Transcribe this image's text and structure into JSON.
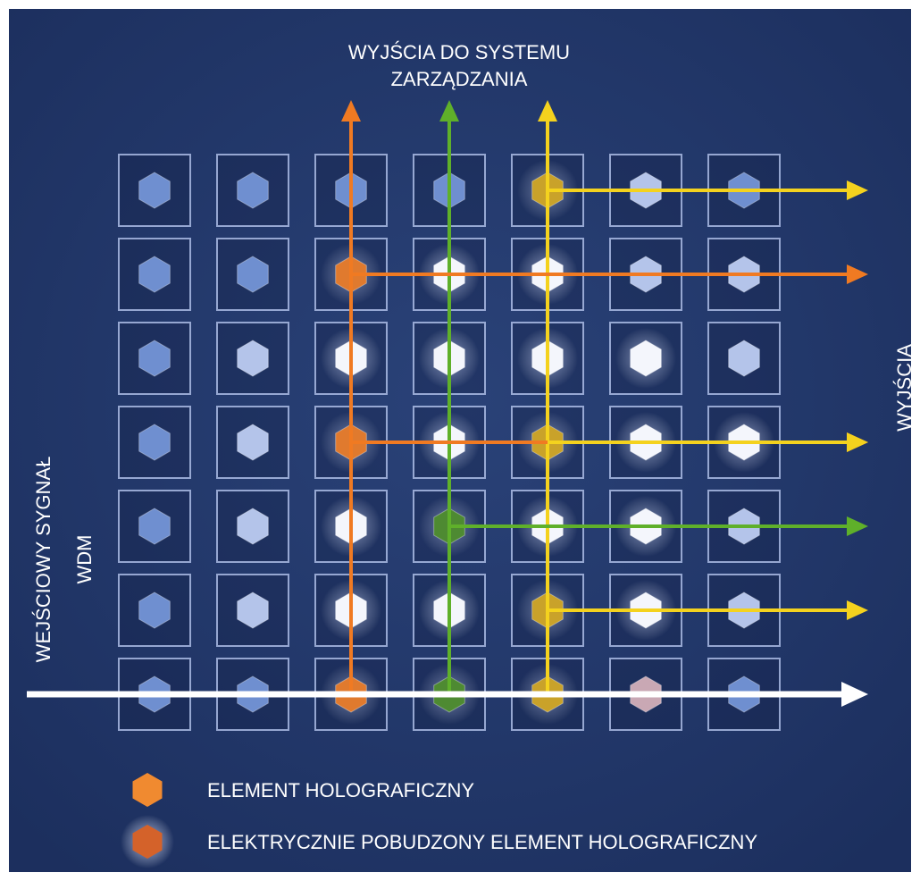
{
  "labels": {
    "top_line1": "WYJŚCIA DO SYSTEMU",
    "top_line2": "ZARZĄDZANIA",
    "left_line1": "WEJŚCIOWY SYGNAŁ",
    "left_line2": "WDM",
    "right": "WYJŚCIA"
  },
  "legend": [
    {
      "id": "element",
      "label": "ELEMENT HOLOGRAFICZNY",
      "color": "#f08a30",
      "glow": false
    },
    {
      "id": "excited",
      "label": "ELEKTRYCZNIE POBUDZONY ELEMENT HOLOGRAFICZNY",
      "color": "#d4622a",
      "glow": true
    }
  ],
  "grid": {
    "rows": 7,
    "cols": 7,
    "element_colors": {
      "B": "#6f8fd0",
      "L": "#b4c4ea",
      "W": "#f4f6fc",
      "O": "#e07a2e",
      "G": "#4e8a32",
      "Y": "#c9a22a",
      "P": "#c9a8b4"
    },
    "cells": [
      [
        "B",
        "B",
        "B",
        "B",
        "Y",
        "L",
        "B"
      ],
      [
        "B",
        "B",
        "O",
        "W",
        "W",
        "L",
        "L"
      ],
      [
        "B",
        "L",
        "W",
        "W",
        "W",
        "W",
        "L"
      ],
      [
        "B",
        "L",
        "O",
        "W",
        "Y",
        "W",
        "W"
      ],
      [
        "B",
        "L",
        "W",
        "G",
        "W",
        "W",
        "L"
      ],
      [
        "B",
        "L",
        "W",
        "W",
        "Y",
        "W",
        "L"
      ],
      [
        "B",
        "B",
        "O",
        "G",
        "Y",
        "P",
        "B"
      ]
    ]
  },
  "beams": {
    "colors": {
      "orange": "#f07a22",
      "green": "#5fb02a",
      "yellow": "#f4d21e",
      "white": "#ffffff"
    },
    "input": {
      "row": 6,
      "color": "white"
    },
    "vertical": [
      {
        "col": 2,
        "color": "orange"
      },
      {
        "col": 3,
        "color": "green"
      },
      {
        "col": 4,
        "color": "yellow"
      }
    ],
    "horizontal": [
      {
        "row": 0,
        "col": 4,
        "color": "yellow"
      },
      {
        "row": 1,
        "col": 2,
        "color": "orange"
      },
      {
        "row": 3,
        "col": 2,
        "color": "orange"
      },
      {
        "row": 3,
        "col": 4,
        "color": "yellow"
      },
      {
        "row": 4,
        "col": 3,
        "color": "green"
      },
      {
        "row": 5,
        "col": 4,
        "color": "yellow"
      }
    ]
  }
}
